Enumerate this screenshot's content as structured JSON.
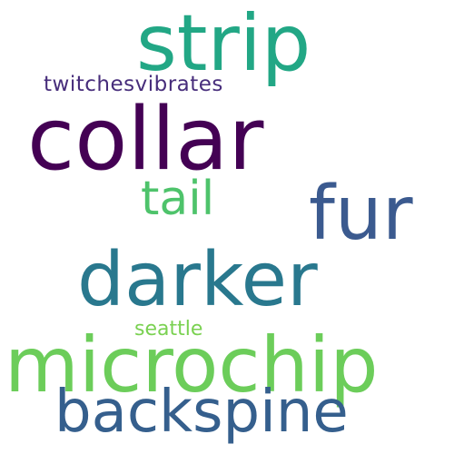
{
  "words": [
    {
      "text": "collar",
      "color": "#440154"
    },
    {
      "text": "strip",
      "color": "#22a785"
    },
    {
      "text": "fur",
      "color": "#3b5a8f"
    },
    {
      "text": "darker",
      "color": "#29788e"
    },
    {
      "text": "microchip",
      "color": "#6ccd5a"
    },
    {
      "text": "backspine",
      "color": "#355f8d"
    },
    {
      "text": "tail",
      "color": "#4ec36b"
    },
    {
      "text": "twitchesvibrates",
      "color": "#472d7b"
    },
    {
      "text": "seattle",
      "color": "#7ad151"
    }
  ]
}
